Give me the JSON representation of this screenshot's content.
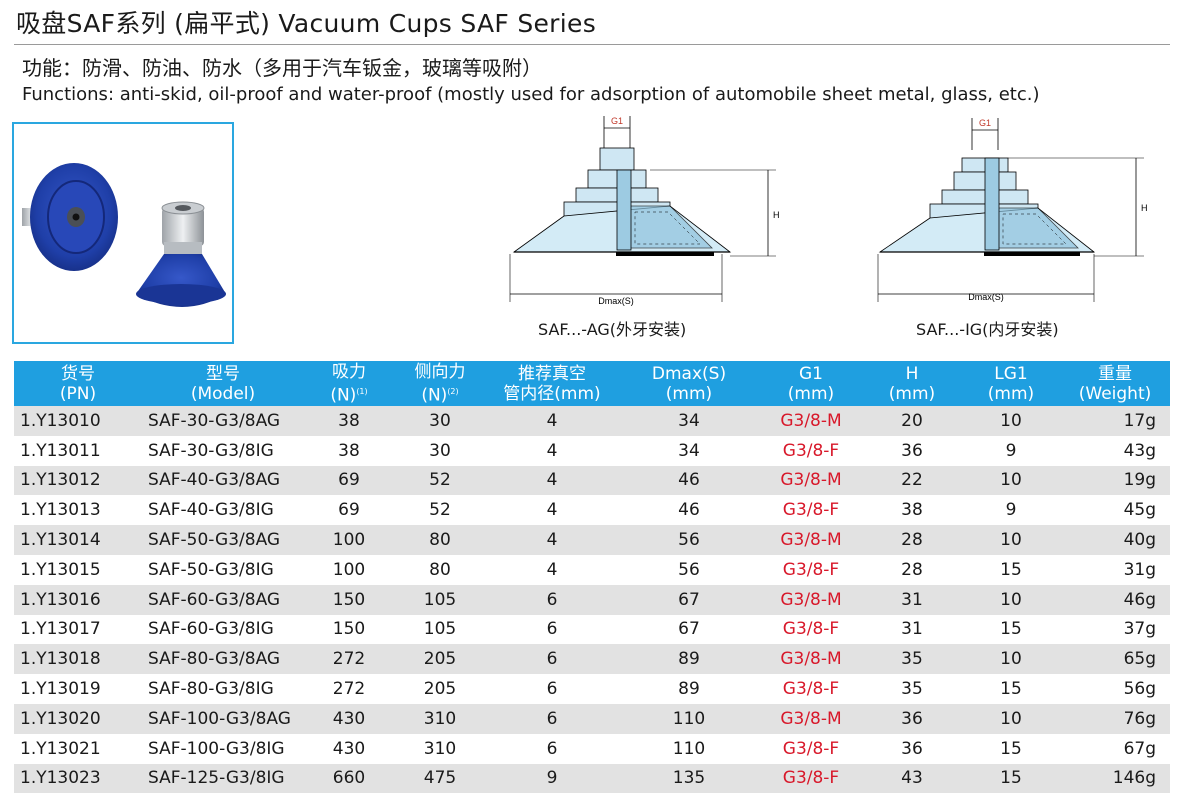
{
  "title": "吸盘SAF系列 (扁平式) Vacuum Cups SAF Series",
  "functions_cn": "功能：防滑、防油、防水（多用于汽车钣金，玻璃等吸附）",
  "functions_en": "Functions: anti-skid, oil-proof and water-proof (mostly used for adsorption of automobile sheet metal, glass, etc.)",
  "diagrams": {
    "ag": {
      "caption": "SAF...-AG(外牙安装)",
      "g1": "G1",
      "h": "H",
      "dmax": "Dmax(S)"
    },
    "ig": {
      "caption": "SAF...-IG(内牙安装)",
      "g1": "G1",
      "h": "H",
      "dmax": "Dmax(S)"
    }
  },
  "table": {
    "headers": [
      {
        "line1": "货号",
        "line2": "(PN)",
        "sup": ""
      },
      {
        "line1": "型号",
        "line2": "(Model)",
        "sup": ""
      },
      {
        "line1": "吸力",
        "line2": "(N)",
        "sup": "(1)"
      },
      {
        "line1": "侧向力",
        "line2": "(N)",
        "sup": "(2)"
      },
      {
        "line1": "推荐真空",
        "line2": "管内径(mm)",
        "sup": ""
      },
      {
        "line1": "Dmax(S)",
        "line2": "(mm)",
        "sup": ""
      },
      {
        "line1": "G1",
        "line2": "(mm)",
        "sup": ""
      },
      {
        "line1": "H",
        "line2": "(mm)",
        "sup": ""
      },
      {
        "line1": "LG1",
        "line2": "(mm)",
        "sup": ""
      },
      {
        "line1": "重量",
        "line2": "(Weight)",
        "sup": ""
      }
    ],
    "rows": [
      [
        "1.Y13010",
        "SAF-30-G3/8AG",
        "38",
        "30",
        "4",
        "34",
        "G3/8-M",
        "20",
        "10",
        "17g"
      ],
      [
        "1.Y13011",
        "SAF-30-G3/8IG",
        "38",
        "30",
        "4",
        "34",
        "G3/8-F",
        "36",
        "9",
        "43g"
      ],
      [
        "1.Y13012",
        "SAF-40-G3/8AG",
        "69",
        "52",
        "4",
        "46",
        "G3/8-M",
        "22",
        "10",
        "19g"
      ],
      [
        "1.Y13013",
        "SAF-40-G3/8IG",
        "69",
        "52",
        "4",
        "46",
        "G3/8-F",
        "38",
        "9",
        "45g"
      ],
      [
        "1.Y13014",
        "SAF-50-G3/8AG",
        "100",
        "80",
        "4",
        "56",
        "G3/8-M",
        "28",
        "10",
        "40g"
      ],
      [
        "1.Y13015",
        "SAF-50-G3/8IG",
        "100",
        "80",
        "4",
        "56",
        "G3/8-F",
        "28",
        "15",
        "31g"
      ],
      [
        "1.Y13016",
        "SAF-60-G3/8AG",
        "150",
        "105",
        "6",
        "67",
        "G3/8-M",
        "31",
        "10",
        "46g"
      ],
      [
        "1.Y13017",
        "SAF-60-G3/8IG",
        "150",
        "105",
        "6",
        "67",
        "G3/8-F",
        "31",
        "15",
        "37g"
      ],
      [
        "1.Y13018",
        "SAF-80-G3/8AG",
        "272",
        "205",
        "6",
        "89",
        "G3/8-M",
        "35",
        "10",
        "65g"
      ],
      [
        "1.Y13019",
        "SAF-80-G3/8IG",
        "272",
        "205",
        "6",
        "89",
        "G3/8-F",
        "35",
        "15",
        "56g"
      ],
      [
        "1.Y13020",
        "SAF-100-G3/8AG",
        "430",
        "310",
        "6",
        "110",
        "G3/8-M",
        "36",
        "10",
        "76g"
      ],
      [
        "1.Y13021",
        "SAF-100-G3/8IG",
        "430",
        "310",
        "6",
        "110",
        "G3/8-F",
        "36",
        "15",
        "67g"
      ],
      [
        "1.Y13023",
        "SAF-125-G3/8IG",
        "660",
        "475",
        "9",
        "135",
        "G3/8-F",
        "43",
        "15",
        "146g"
      ]
    ]
  },
  "colors": {
    "header_bg": "#1f9fe0",
    "thread_text": "#d8182a",
    "row_shade": "#e2e2e2",
    "cup_blue": "#1f3fa8",
    "photo_border": "#2aa7e0"
  }
}
